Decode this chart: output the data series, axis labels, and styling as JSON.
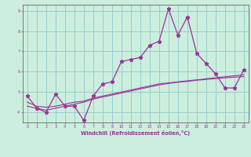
{
  "xlabel": "Windchill (Refroidissement éolien,°C)",
  "bg_color": "#cceedd",
  "line_color": "#993399",
  "grid_color": "#99cccc",
  "xlim": [
    -0.5,
    23.5
  ],
  "ylim": [
    3.5,
    9.3
  ],
  "yticks": [
    4,
    5,
    6,
    7,
    8,
    9
  ],
  "xticks": [
    0,
    1,
    2,
    3,
    4,
    5,
    6,
    7,
    8,
    9,
    10,
    11,
    12,
    13,
    14,
    15,
    16,
    17,
    18,
    19,
    20,
    21,
    22,
    23
  ],
  "x_hours": [
    0,
    1,
    2,
    3,
    4,
    5,
    6,
    7,
    8,
    9,
    10,
    11,
    12,
    13,
    14,
    15,
    16,
    17,
    18,
    19,
    20,
    21,
    22,
    23
  ],
  "line1_y": [
    4.8,
    4.2,
    4.0,
    4.9,
    4.3,
    4.3,
    3.6,
    4.8,
    5.4,
    5.5,
    6.5,
    6.6,
    6.7,
    7.3,
    7.5,
    9.1,
    7.8,
    8.7,
    6.9,
    6.4,
    5.9,
    5.2,
    5.2,
    6.1
  ],
  "line2_y": [
    4.5,
    4.3,
    4.25,
    4.3,
    4.4,
    4.5,
    4.55,
    4.7,
    4.8,
    4.9,
    5.0,
    5.1,
    5.2,
    5.3,
    5.4,
    5.45,
    5.5,
    5.55,
    5.6,
    5.65,
    5.7,
    5.75,
    5.8,
    5.85
  ],
  "line3_y": [
    4.3,
    4.2,
    4.1,
    4.2,
    4.3,
    4.4,
    4.5,
    4.65,
    4.75,
    4.85,
    4.95,
    5.05,
    5.15,
    5.25,
    5.35,
    5.42,
    5.48,
    5.52,
    5.58,
    5.62,
    5.66,
    5.7,
    5.73,
    5.76
  ]
}
